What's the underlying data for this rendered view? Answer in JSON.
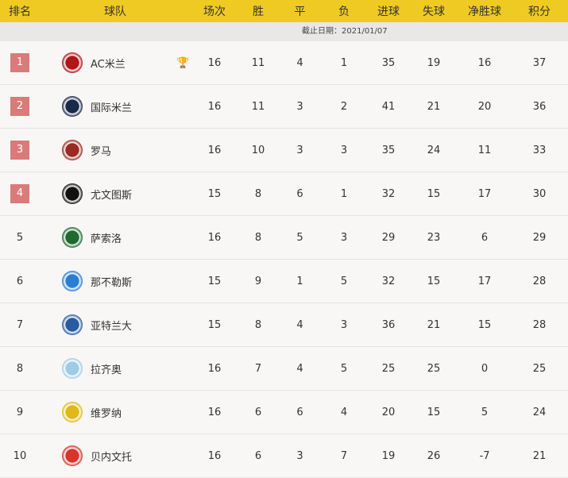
{
  "headers": [
    "排名",
    "球队",
    "场次",
    "胜",
    "平",
    "负",
    "进球",
    "失球",
    "净胜球",
    "积分"
  ],
  "date_note": "截止日期：2021/01/07",
  "colors": {
    "header": "#efca22",
    "rank_badge": "#d97b78"
  },
  "rows": [
    {
      "rank": "1",
      "team": "AC米兰",
      "logo": "ac-milan-logo",
      "trophy": true,
      "p": "16",
      "w": "11",
      "d": "4",
      "l": "1",
      "gf": "35",
      "ga": "19",
      "gd": "16",
      "pts": "37",
      "color": "#b0151a"
    },
    {
      "rank": "2",
      "team": "国际米兰",
      "logo": "inter-logo",
      "p": "16",
      "w": "11",
      "d": "3",
      "l": "2",
      "gf": "41",
      "ga": "21",
      "gd": "20",
      "pts": "36",
      "color": "#1a2a4a"
    },
    {
      "rank": "3",
      "team": "罗马",
      "logo": "roma-logo",
      "p": "16",
      "w": "10",
      "d": "3",
      "l": "3",
      "gf": "35",
      "ga": "24",
      "gd": "11",
      "pts": "33",
      "color": "#9a2a22"
    },
    {
      "rank": "4",
      "team": "尤文图斯",
      "logo": "juventus-logo",
      "p": "15",
      "w": "8",
      "d": "6",
      "l": "1",
      "gf": "32",
      "ga": "15",
      "gd": "17",
      "pts": "30",
      "color": "#111111"
    },
    {
      "rank": "5",
      "team": "萨索洛",
      "logo": "sassuolo-logo",
      "p": "16",
      "w": "8",
      "d": "5",
      "l": "3",
      "gf": "29",
      "ga": "23",
      "gd": "6",
      "pts": "29",
      "color": "#1e6a30"
    },
    {
      "rank": "6",
      "team": "那不勒斯",
      "logo": "napoli-logo",
      "p": "15",
      "w": "9",
      "d": "1",
      "l": "5",
      "gf": "32",
      "ga": "15",
      "gd": "17",
      "pts": "28",
      "color": "#2b7fd1"
    },
    {
      "rank": "7",
      "team": "亚特兰大",
      "logo": "atalanta-logo",
      "p": "15",
      "w": "8",
      "d": "4",
      "l": "3",
      "gf": "36",
      "ga": "21",
      "gd": "15",
      "pts": "28",
      "color": "#2a5aa0"
    },
    {
      "rank": "8",
      "team": "拉齐奥",
      "logo": "lazio-logo",
      "p": "16",
      "w": "7",
      "d": "4",
      "l": "5",
      "gf": "25",
      "ga": "25",
      "gd": "0",
      "pts": "25",
      "color": "#9ecbe8"
    },
    {
      "rank": "9",
      "team": "维罗纳",
      "logo": "verona-logo",
      "p": "16",
      "w": "6",
      "d": "6",
      "l": "4",
      "gf": "20",
      "ga": "15",
      "gd": "5",
      "pts": "24",
      "color": "#e0b81a"
    },
    {
      "rank": "10",
      "team": "贝内文托",
      "logo": "benevento-logo",
      "p": "16",
      "w": "6",
      "d": "3",
      "l": "7",
      "gf": "19",
      "ga": "26",
      "gd": "-7",
      "pts": "21",
      "color": "#d8352a"
    }
  ]
}
